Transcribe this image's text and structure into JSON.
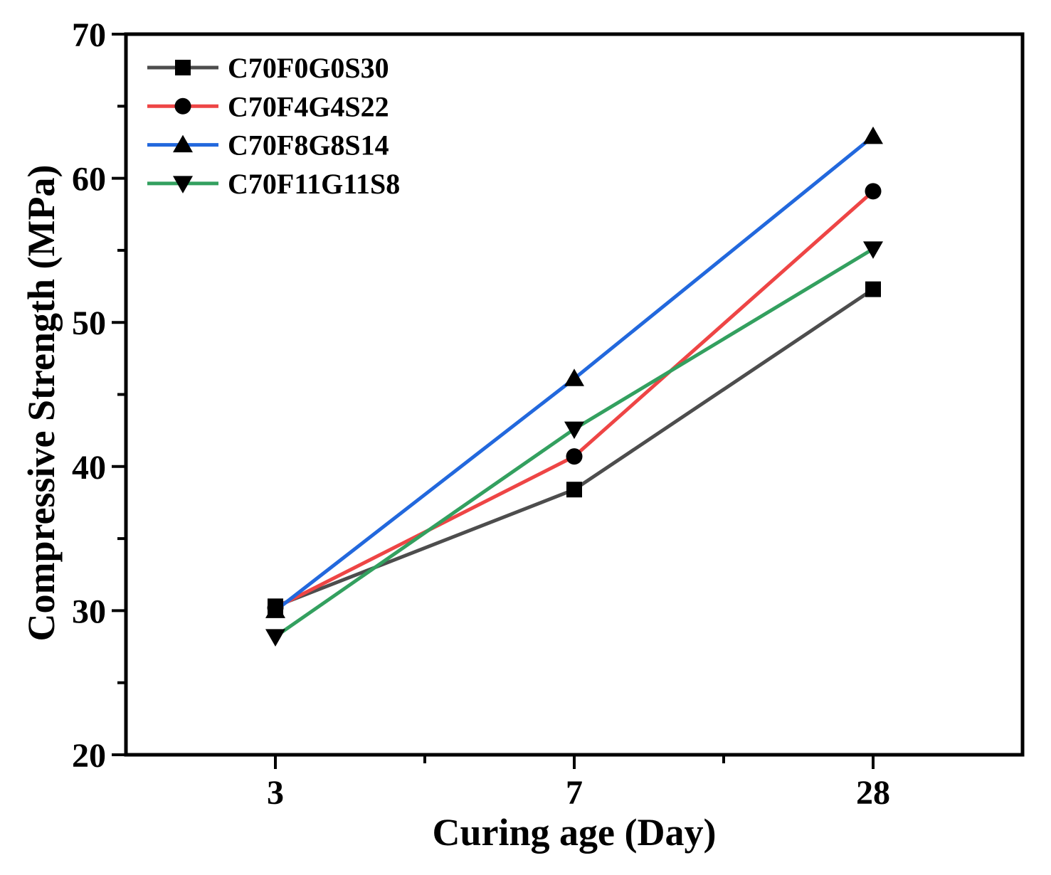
{
  "figure": {
    "background": "#ffffff"
  },
  "chart_data": {
    "type": "line",
    "title": "",
    "xlabel": "Curing age (Day)",
    "ylabel": "Compressive Strength (MPa)",
    "categories": [
      "3",
      "7",
      "28"
    ],
    "series": [
      {
        "name": "C70F0G0S30",
        "marker": "square",
        "line_color": "#4d4d4d",
        "marker_color": "#000000",
        "values": [
          30.3,
          38.4,
          52.3
        ]
      },
      {
        "name": "C70F4G4S22",
        "marker": "circle",
        "line_color": "#ee4545",
        "marker_color": "#000000",
        "values": [
          30.2,
          40.7,
          59.1
        ]
      },
      {
        "name": "C70F8G8S14",
        "marker": "triangle-up",
        "line_color": "#2268dd",
        "marker_color": "#000000",
        "values": [
          30.0,
          46.1,
          62.9
        ]
      },
      {
        "name": "C70F11G11S8",
        "marker": "triangle-down",
        "line_color": "#33a05f",
        "marker_color": "#000000",
        "values": [
          28.2,
          42.6,
          55.1
        ]
      }
    ],
    "ylim": [
      20,
      70
    ],
    "y_major_ticks": [
      20,
      30,
      40,
      50,
      60,
      70
    ],
    "y_minor_ticks": [
      25,
      35,
      45,
      55,
      65
    ],
    "x_minor_between_categories": true,
    "grid": false,
    "legend_position": "top-left",
    "axis_color": "#000000",
    "text_color": "#000000"
  }
}
